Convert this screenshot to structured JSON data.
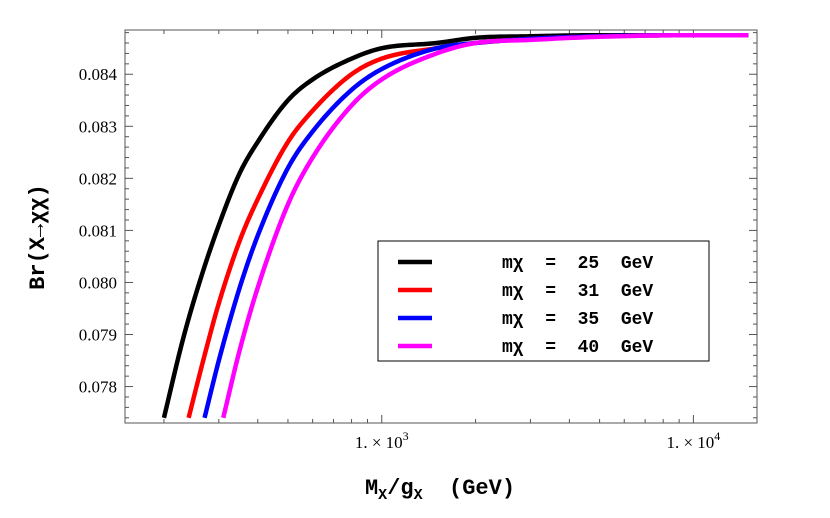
{
  "chart_data": {
    "type": "line",
    "x_scale": "log",
    "xlabel_main": "M",
    "xlabel_sub1": "X",
    "xlabel_mid": "/g",
    "xlabel_sub2": "X",
    "xlabel_tail": "  (GeV)",
    "ylabel": "Br(X→χχ)",
    "xlim": [
      150,
      16000
    ],
    "ylim": [
      0.0773,
      0.08485
    ],
    "x_ticks": [
      {
        "value": 1000,
        "label": "1. × 10",
        "exp": "3"
      },
      {
        "value": 10000,
        "label": "1. × 10",
        "exp": "4"
      }
    ],
    "y_ticks": [
      {
        "value": 0.078,
        "label": "0.078"
      },
      {
        "value": 0.079,
        "label": "0.079"
      },
      {
        "value": 0.08,
        "label": "0.080"
      },
      {
        "value": 0.081,
        "label": "0.081"
      },
      {
        "value": 0.082,
        "label": "0.082"
      },
      {
        "value": 0.083,
        "label": "0.083"
      },
      {
        "value": 0.084,
        "label": "0.084"
      }
    ],
    "grid": false,
    "legend_position": "lower-right",
    "series": [
      {
        "name": "mχ = 25 GeV",
        "color": "#000000",
        "x": [
          200,
          230,
          260,
          300,
          350,
          400,
          500,
          600,
          800,
          1000,
          1500,
          2000,
          3000,
          5000,
          10000,
          15000
        ],
        "y": [
          0.0774,
          0.0789,
          0.08,
          0.0811,
          0.0821,
          0.0827,
          0.0835,
          0.0839,
          0.0843,
          0.0845,
          0.0846,
          0.0847,
          0.08473,
          0.08475,
          0.08475,
          0.08475
        ]
      },
      {
        "name": "mχ = 31 GeV",
        "color": "#ff0000",
        "x": [
          240,
          270,
          300,
          350,
          400,
          500,
          600,
          800,
          1000,
          1500,
          2000,
          3000,
          5000,
          10000,
          15000
        ],
        "y": [
          0.0774,
          0.0786,
          0.0796,
          0.0808,
          0.0816,
          0.0827,
          0.0833,
          0.084,
          0.0843,
          0.0845,
          0.0846,
          0.08468,
          0.08473,
          0.08475,
          0.08475
        ]
      },
      {
        "name": "mχ = 35 GeV",
        "color": "#0000ff",
        "x": [
          270,
          300,
          350,
          400,
          500,
          600,
          800,
          1000,
          1500,
          2000,
          3000,
          5000,
          10000,
          15000
        ],
        "y": [
          0.0774,
          0.0785,
          0.0799,
          0.0809,
          0.0822,
          0.0829,
          0.0837,
          0.0841,
          0.0845,
          0.0846,
          0.08468,
          0.08473,
          0.08475,
          0.08475
        ]
      },
      {
        "name": "mχ = 40 GeV",
        "color": "#ff00ff",
        "x": [
          310,
          350,
          400,
          500,
          600,
          800,
          1000,
          1500,
          2000,
          3000,
          5000,
          10000,
          15000
        ],
        "y": [
          0.0774,
          0.0787,
          0.0799,
          0.0815,
          0.0824,
          0.0834,
          0.0839,
          0.0844,
          0.0846,
          0.08466,
          0.08472,
          0.08475,
          0.08475
        ]
      }
    ]
  }
}
